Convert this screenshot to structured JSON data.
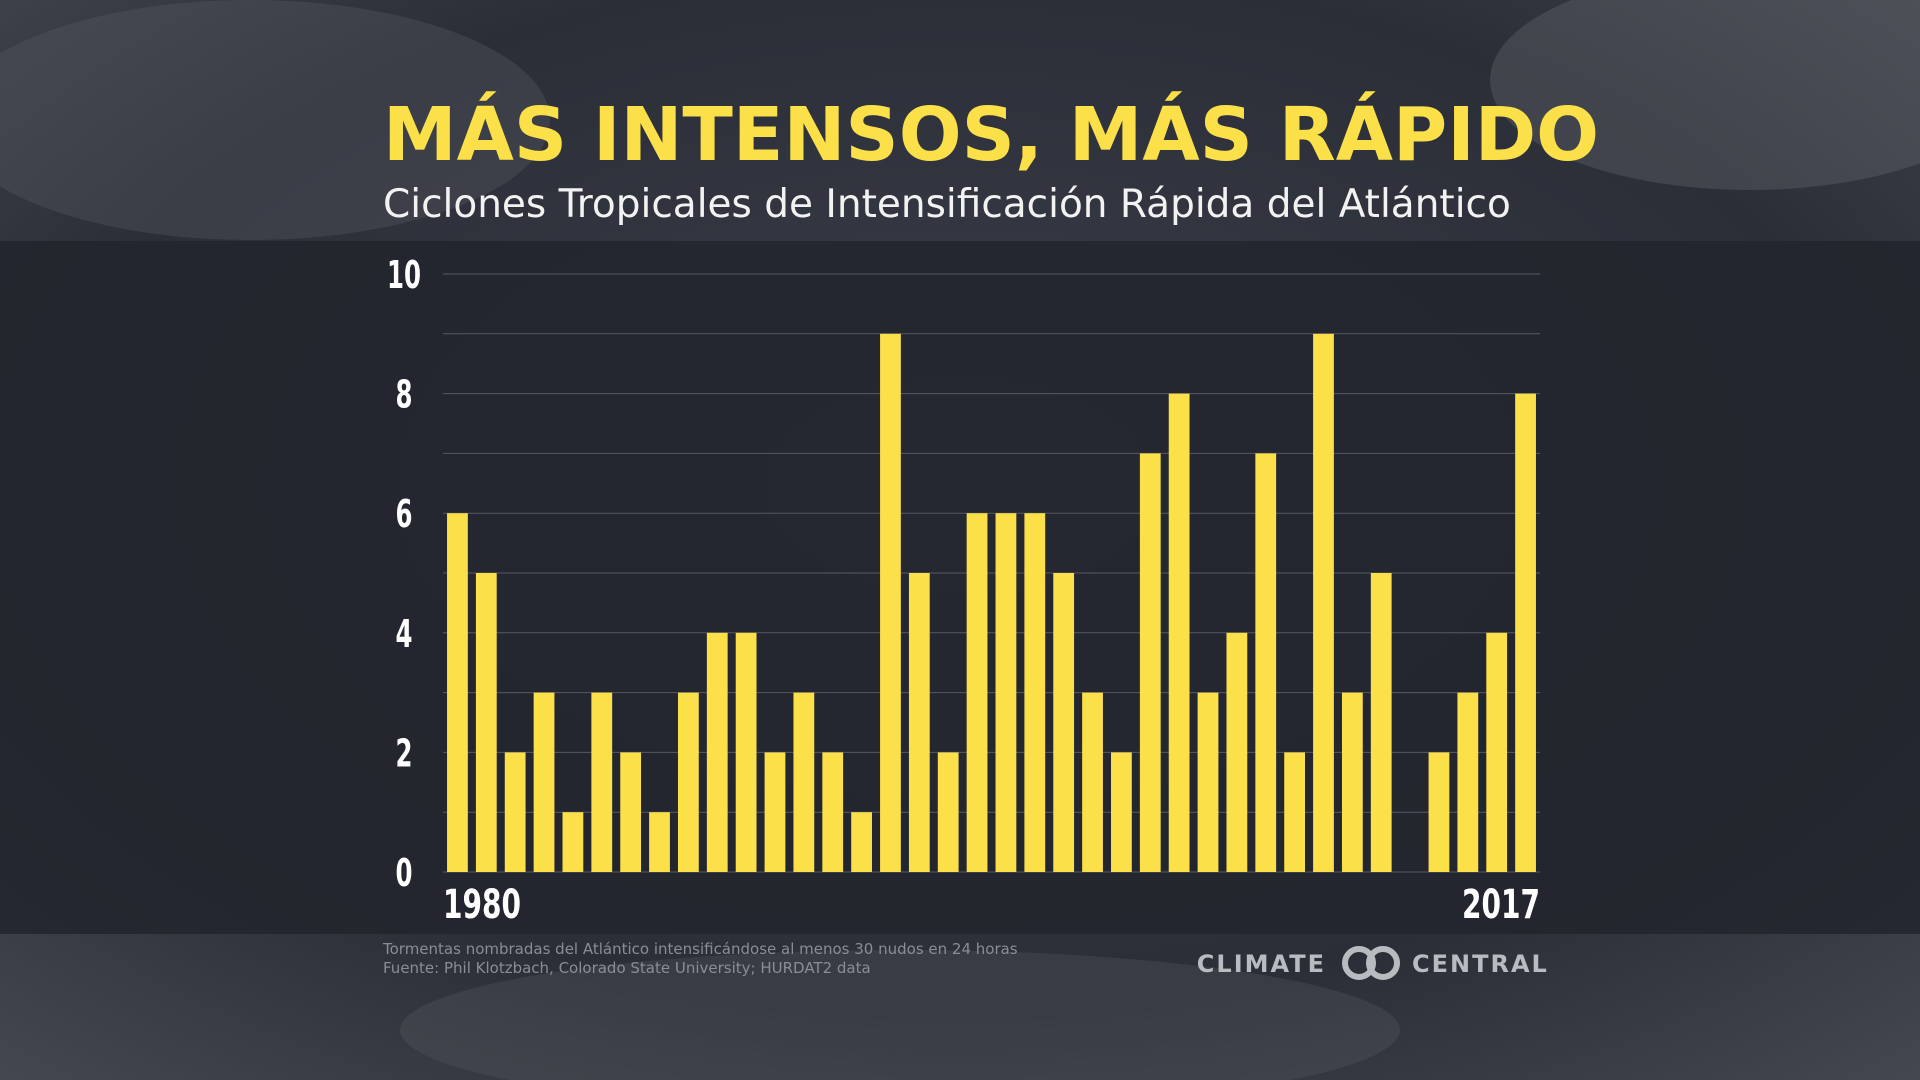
{
  "chart_data": {
    "type": "bar",
    "title": "MÁS INTENSOS, MÁS RÁPIDO",
    "subtitle": "Ciclones Tropicales de Intensificación Rápida del Atlántico",
    "categories": [
      "1980",
      null,
      null,
      null,
      null,
      null,
      null,
      null,
      null,
      null,
      null,
      null,
      null,
      null,
      null,
      null,
      null,
      null,
      null,
      null,
      null,
      null,
      null,
      null,
      null,
      null,
      null,
      null,
      null,
      null,
      null,
      null,
      null,
      null,
      null,
      null,
      null,
      "2017"
    ],
    "values": [
      6,
      5,
      2,
      3,
      1,
      3,
      2,
      1,
      3,
      4,
      4,
      2,
      3,
      2,
      1,
      9,
      5,
      2,
      6,
      6,
      6,
      5,
      3,
      2,
      7,
      8,
      3,
      4,
      7,
      2,
      9,
      3,
      5,
      0,
      2,
      3,
      4,
      8
    ],
    "color": "#fbe04a",
    "ylim": [
      0,
      10
    ],
    "yticks": [
      0,
      2,
      4,
      6,
      8,
      10
    ],
    "minor_yticks": [
      1,
      3,
      5,
      7,
      9
    ],
    "grid": true,
    "notes": [
      "Tormentas nombradas del Atlántico intensificándose al menos 30 nudos en 24 horas",
      "Fuente: Phil Klotzbach, Colorado State University; HURDAT2 data"
    ],
    "logo": [
      "CLIMATE",
      "CENTRAL"
    ]
  }
}
